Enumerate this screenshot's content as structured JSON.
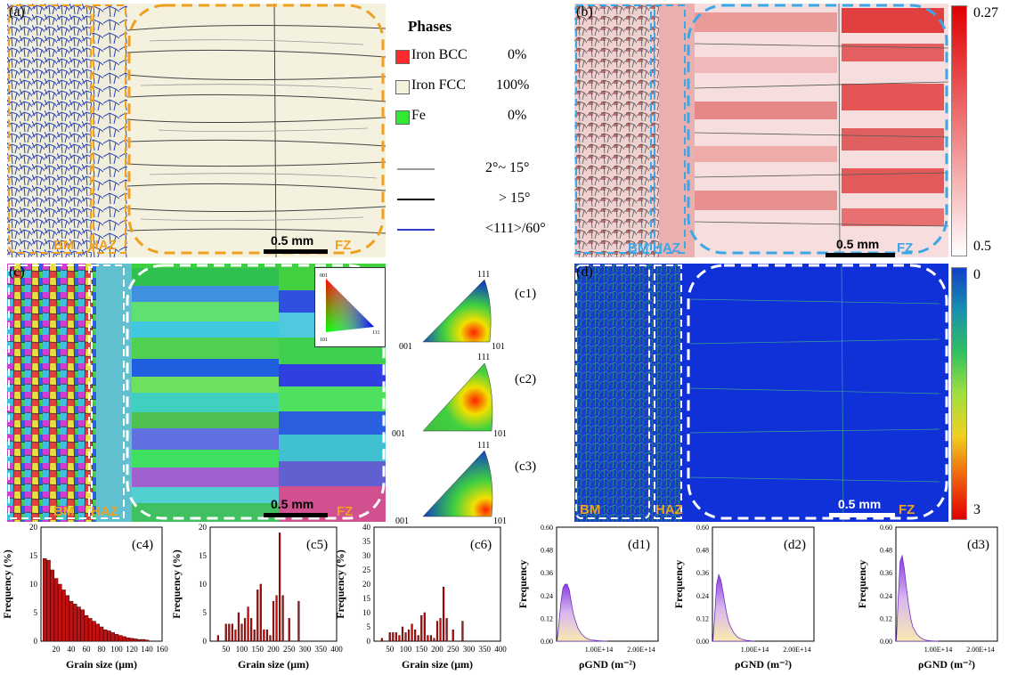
{
  "panel_a": {
    "label": "(a)",
    "zones": {
      "bm": "BM",
      "haz": "HAZ",
      "fz": "FZ"
    },
    "scale": "0.5 mm"
  },
  "legend": {
    "title": "Phases",
    "phases": [
      {
        "name": "Iron BCC",
        "value": "0%",
        "color": "#ff2a2a"
      },
      {
        "name": "Iron FCC",
        "value": "100%",
        "color": "#f3f1dc"
      },
      {
        "name": "Fe",
        "value": "0%",
        "color": "#33e833"
      }
    ],
    "boundaries": [
      {
        "label": "2°~ 15°",
        "color": "#9a9a9a"
      },
      {
        "label": "> 15°",
        "color": "#000000"
      },
      {
        "label": "<111>/60°",
        "color": "#2a3fc4"
      }
    ]
  },
  "panel_b": {
    "label": "(b)",
    "zones": {
      "bm": "BM",
      "haz": "HAZ",
      "fz": "FZ"
    },
    "scale": "0.5 mm",
    "colorbar": {
      "top": "0.27",
      "bottom": "0.5"
    }
  },
  "panel_c": {
    "label": "(c)",
    "zones": {
      "bm": "BM",
      "haz": "HAZ",
      "fz": "FZ"
    },
    "scale": "0.5 mm",
    "ipf_key": {
      "top": "001",
      "bottom_left": "101",
      "right": "111"
    }
  },
  "pole_figures": [
    {
      "label": "(c1)",
      "top": "111",
      "left": "001",
      "right": "101"
    },
    {
      "label": "(c2)",
      "top": "111",
      "left": "001",
      "right": "101"
    },
    {
      "label": "(c3)",
      "top": "111",
      "left": "001",
      "right": "101"
    }
  ],
  "panel_d": {
    "label": "(d)",
    "zones": {
      "bm": "BM",
      "haz": "HAZ",
      "fz": "FZ"
    },
    "scale": "0.5 mm",
    "colorbar": {
      "top": "0",
      "bottom": "3"
    }
  },
  "chart_data": [
    {
      "type": "bar",
      "label": "(c4)",
      "xlabel": "Grain size (μm)",
      "ylabel": "Frequency (%)",
      "xlim": [
        0,
        160
      ],
      "ylim": [
        0,
        20
      ],
      "xticks": [
        20,
        40,
        60,
        80,
        100,
        120,
        140,
        160
      ],
      "yticks": [
        0,
        5,
        10,
        15,
        20
      ],
      "x": [
        5,
        10,
        15,
        20,
        25,
        30,
        35,
        40,
        45,
        50,
        55,
        60,
        65,
        70,
        75,
        80,
        85,
        90,
        95,
        100,
        105,
        110,
        115,
        120,
        125,
        130,
        135,
        140
      ],
      "values": [
        14.5,
        14.2,
        12.5,
        11,
        10,
        9,
        8,
        7,
        6.5,
        6,
        5.5,
        4.5,
        4,
        3.5,
        3,
        2.5,
        2,
        1.8,
        1.5,
        1.2,
        1,
        0.8,
        0.6,
        0.5,
        0.4,
        0.3,
        0.3,
        0.2
      ]
    },
    {
      "type": "bar",
      "label": "(c5)",
      "xlabel": "Grain size (μm)",
      "ylabel": "Frequency (%)",
      "xlim": [
        0,
        400
      ],
      "ylim": [
        0,
        20
      ],
      "xticks": [
        50,
        100,
        150,
        200,
        250,
        300,
        350,
        400
      ],
      "yticks": [
        0,
        5,
        10,
        15,
        20
      ],
      "x": [
        25,
        50,
        60,
        70,
        80,
        90,
        100,
        110,
        120,
        130,
        140,
        150,
        160,
        170,
        180,
        190,
        200,
        210,
        220,
        230,
        250,
        280
      ],
      "values": [
        1,
        3,
        3,
        3,
        2,
        5,
        3,
        4,
        6,
        4,
        2,
        9,
        10,
        2,
        2,
        1,
        7,
        8,
        19,
        8,
        4,
        7
      ]
    },
    {
      "type": "bar",
      "label": "(c6)",
      "xlabel": "Grain size (μm)",
      "ylabel": "Frequency (%)",
      "xlim": [
        0,
        400
      ],
      "ylim": [
        0,
        40
      ],
      "xticks": [
        50,
        100,
        150,
        200,
        250,
        300,
        350,
        400
      ],
      "yticks": [
        0,
        5,
        10,
        15,
        20,
        25,
        30,
        35,
        40
      ],
      "x": [
        25,
        50,
        60,
        70,
        80,
        90,
        100,
        110,
        120,
        130,
        140,
        150,
        160,
        170,
        180,
        190,
        200,
        210,
        220,
        230,
        250,
        280
      ],
      "values": [
        1,
        3,
        3,
        3,
        2,
        5,
        3,
        4,
        6,
        4,
        2,
        9,
        10,
        2,
        2,
        1,
        7,
        8,
        19,
        8,
        4,
        7
      ]
    },
    {
      "type": "area",
      "label": "(d1)",
      "xlabel": "ρGND (m⁻²)",
      "ylabel": "Frequency",
      "xticks": [
        "1.00E+14",
        "2.00E+14"
      ],
      "yticks": [
        "0.00",
        "0.12",
        "0.24",
        "0.36",
        "0.48",
        "0.60"
      ],
      "ylim": [
        0,
        0.6
      ],
      "xlim": [
        0,
        240000000000000.0
      ],
      "x": [
        1000000000000.0,
        5000000000000.0,
        10000000000000.0,
        15000000000000.0,
        20000000000000.0,
        25000000000000.0,
        30000000000000.0,
        35000000000000.0,
        40000000000000.0,
        50000000000000.0,
        60000000000000.0,
        70000000000000.0,
        80000000000000.0,
        100000000000000.0,
        120000000000000.0
      ],
      "values": [
        0.0,
        0.08,
        0.2,
        0.28,
        0.3,
        0.3,
        0.27,
        0.2,
        0.14,
        0.07,
        0.035,
        0.015,
        0.007,
        0.002,
        0.0
      ]
    },
    {
      "type": "area",
      "label": "(d2)",
      "xlabel": "ρGND (m⁻²)",
      "ylabel": "Frequency",
      "xticks": [
        "1.00E+14",
        "2.00E+14"
      ],
      "yticks": [
        "0.00",
        "0.12",
        "0.24",
        "0.36",
        "0.48",
        "0.60"
      ],
      "ylim": [
        0,
        0.6
      ],
      "xlim": [
        0,
        240000000000000.0
      ],
      "x": [
        1000000000000.0,
        5000000000000.0,
        10000000000000.0,
        15000000000000.0,
        20000000000000.0,
        25000000000000.0,
        30000000000000.0,
        35000000000000.0,
        40000000000000.0,
        50000000000000.0,
        60000000000000.0,
        70000000000000.0,
        80000000000000.0,
        100000000000000.0
      ],
      "values": [
        0.0,
        0.12,
        0.3,
        0.35,
        0.32,
        0.26,
        0.19,
        0.13,
        0.09,
        0.045,
        0.02,
        0.01,
        0.004,
        0.0
      ]
    },
    {
      "type": "area",
      "label": "(d3)",
      "xlabel": "ρGND (m⁻²)",
      "ylabel": "Frequency",
      "xticks": [
        "1.00E+14",
        "2.00E+14"
      ],
      "yticks": [
        "0.00",
        "0.12",
        "0.24",
        "0.36",
        "0.48",
        "0.60"
      ],
      "ylim": [
        0,
        0.6
      ],
      "xlim": [
        0,
        240000000000000.0
      ],
      "x": [
        1000000000000.0,
        5000000000000.0,
        10000000000000.0,
        15000000000000.0,
        20000000000000.0,
        25000000000000.0,
        30000000000000.0,
        35000000000000.0,
        40000000000000.0,
        50000000000000.0,
        60000000000000.0,
        70000000000000.0,
        80000000000000.0,
        100000000000000.0
      ],
      "values": [
        0.0,
        0.2,
        0.42,
        0.45,
        0.38,
        0.28,
        0.19,
        0.12,
        0.075,
        0.035,
        0.015,
        0.006,
        0.002,
        0.0
      ]
    }
  ]
}
